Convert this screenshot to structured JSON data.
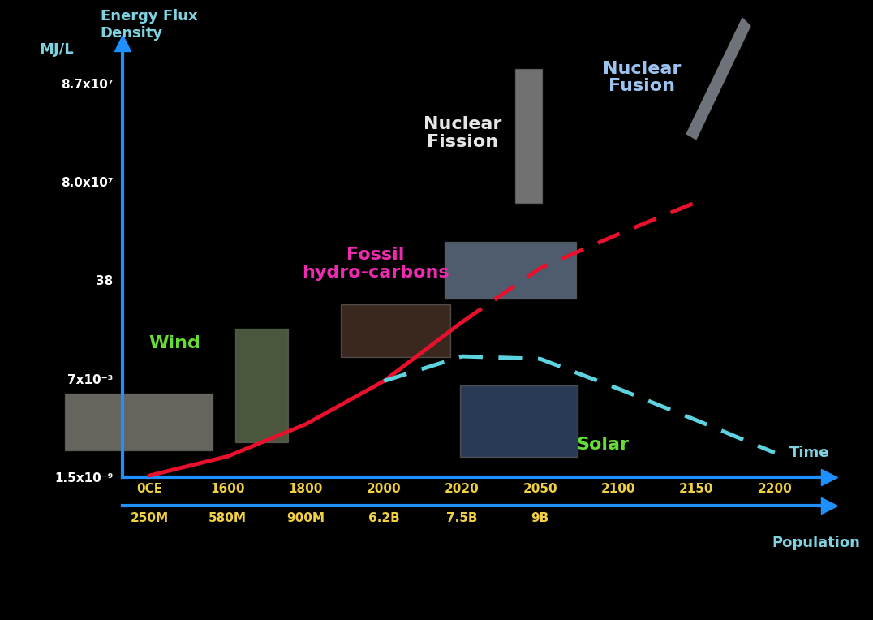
{
  "chart_data": {
    "type": "line",
    "y_label": "Energy Flux\nDensity",
    "y_unit": "MJ/L",
    "x_label": "Time",
    "categories": [
      "0CE",
      "1600",
      "1800",
      "2000",
      "2020",
      "2050",
      "2100",
      "2150",
      "2200"
    ],
    "population": {
      "label": "Population",
      "labels": [
        "250M",
        "580M",
        "900M",
        "6.2B",
        "7.5B",
        "9B",
        null,
        null,
        null
      ]
    },
    "ylim": [
      1.5e-09,
      90000000
    ],
    "yticks": [
      {
        "value": 1.5e-09,
        "label": "1.5x10⁻⁹"
      },
      {
        "value": 0.007,
        "label": "7x10⁻³"
      },
      38,
      {
        "value": 80000000,
        "label": "8.0x10⁷"
      },
      {
        "value": 87000000,
        "label": "8.7x10⁷"
      }
    ],
    "grid": false,
    "series": [
      {
        "color": "#e8112d",
        "line_style": "solid",
        "values": [
          2e-09,
          4e-08,
          6e-06,
          0.005,
          1.0,
          null,
          null,
          null,
          null
        ]
      },
      {
        "color": "#e8112d",
        "line_style": "dashed",
        "values": [
          null,
          null,
          null,
          null,
          1.0,
          230,
          35000,
          4000000,
          null
        ]
      },
      {
        "color": "#5ed3e0",
        "line_style": "dashed",
        "values": [
          null,
          null,
          null,
          0.005,
          0.05,
          0.04,
          0.0015,
          1.1e-05,
          7e-08
        ]
      }
    ],
    "annotations": [
      {
        "text": "Wind",
        "color": "#66dd33"
      },
      {
        "text": "Fossil\nhydro-carbons",
        "color": "#ee2bb0"
      },
      {
        "text": "Nuclear\nFission",
        "color": "#e6e6e6"
      },
      {
        "text": "Nuclear\nFusion",
        "color": "#9cc3f0"
      },
      {
        "text": "Solar",
        "color": "#66dd33"
      }
    ]
  }
}
